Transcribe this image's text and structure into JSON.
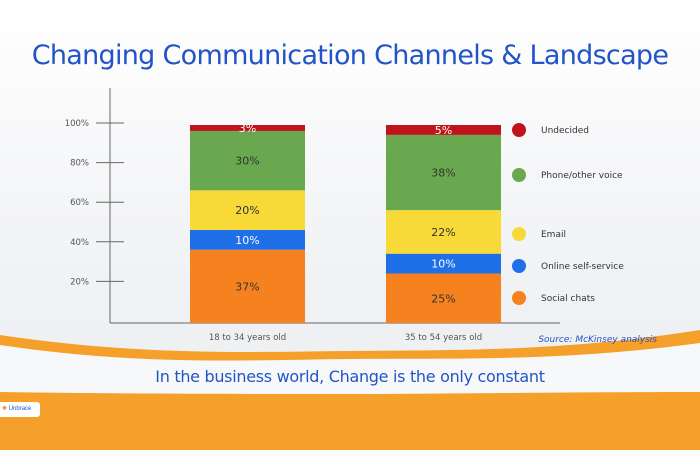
{
  "chart_data": {
    "type": "bar",
    "stacked": true,
    "title": "Changing Communication Channels & Landscape",
    "categories": [
      "18 to 34 years old",
      "35 to 54 years old"
    ],
    "y_ticks": [
      "20%",
      "40%",
      "60%",
      "80%",
      "100%"
    ],
    "ylim": [
      0,
      100
    ],
    "series": [
      {
        "name": "Social chats",
        "values": [
          37,
          25
        ],
        "labels": [
          "37%",
          "25%"
        ],
        "color": "#f5821f"
      },
      {
        "name": "Online self-service",
        "values": [
          10,
          10
        ],
        "labels": [
          "10%",
          "10%"
        ],
        "color": "#1f6fe8"
      },
      {
        "name": "Email",
        "values": [
          20,
          22
        ],
        "labels": [
          "20%",
          "22%"
        ],
        "color": "#f7d937"
      },
      {
        "name": "Phone/other voice",
        "values": [
          30,
          38
        ],
        "labels": [
          "30%",
          "38%"
        ],
        "color": "#6aa84f"
      },
      {
        "name": "Undecided",
        "values": [
          3,
          5
        ],
        "labels": [
          "3%",
          "5%"
        ],
        "color": "#c0141c"
      }
    ],
    "legend_order": [
      "Undecided",
      "Phone/other voice",
      "Email",
      "Online self-service",
      "Social chats"
    ],
    "legend_placement": "right",
    "grid": false
  },
  "tagline": "In the business world, Change is the only constant",
  "source": "Source: McKinsey analysis",
  "logo_text": "Unbrace"
}
